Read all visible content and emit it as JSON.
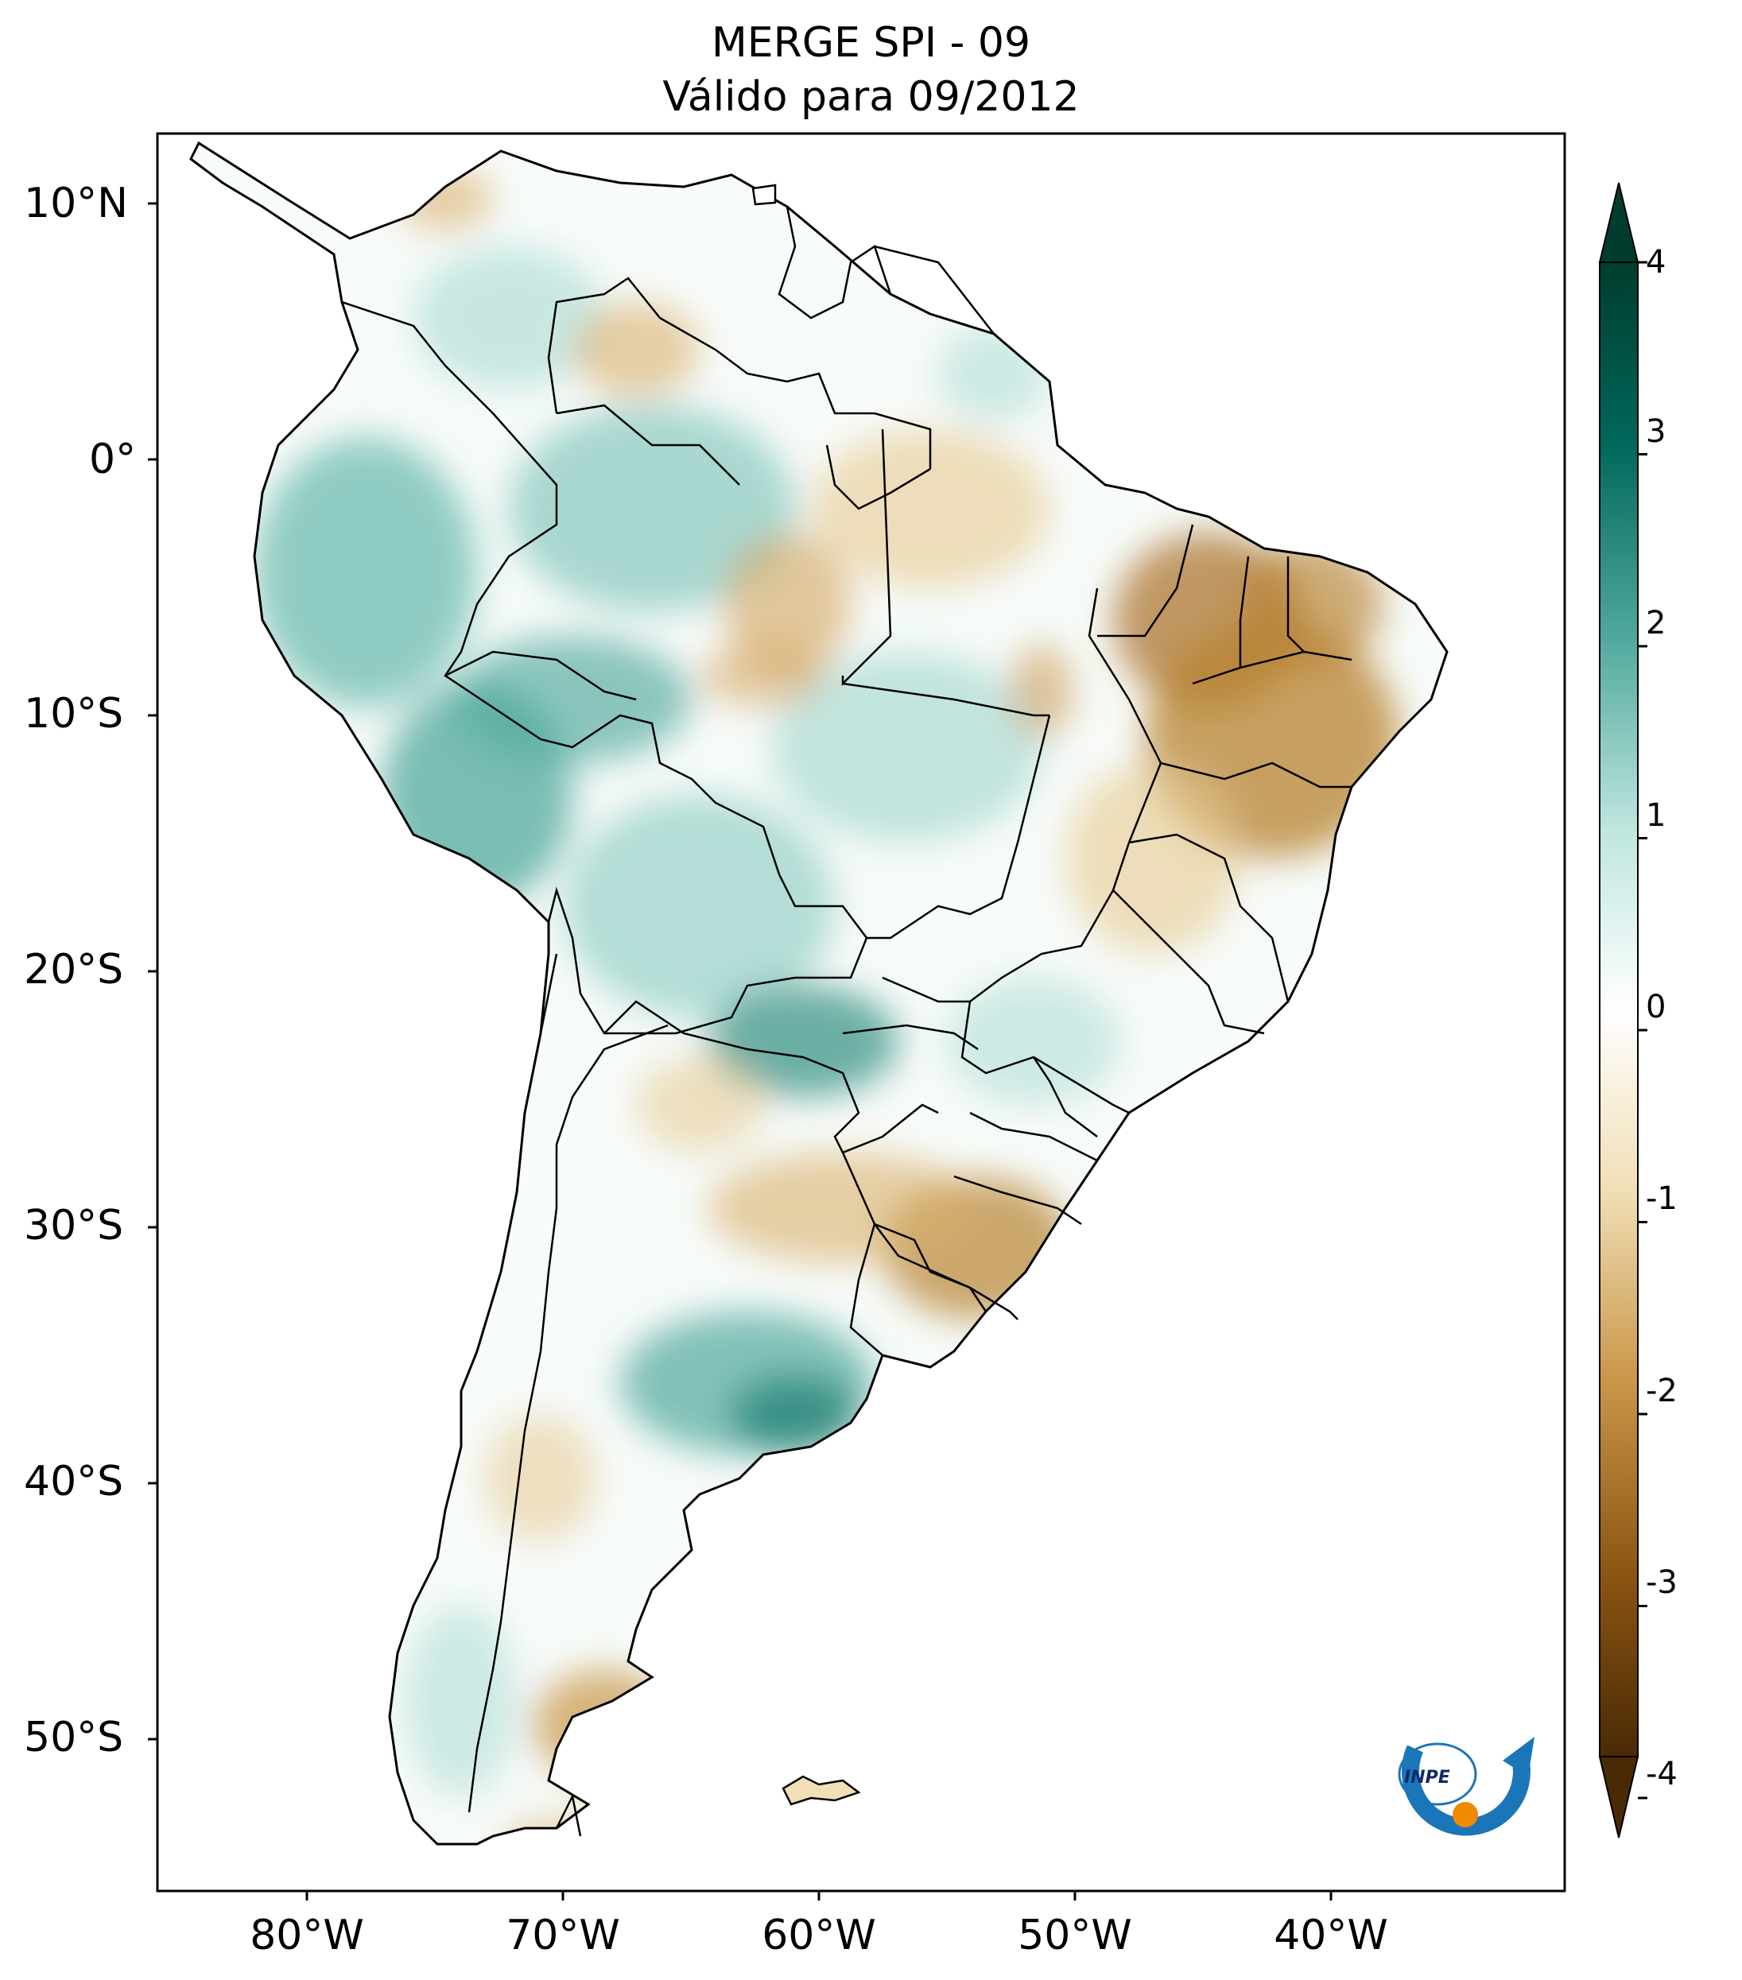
{
  "title": "MERGE   SPI - 09",
  "subtitle": "Válido para 09/2012",
  "lat_ticks": [
    "10°N",
    "0°",
    "10°S",
    "20°S",
    "30°S",
    "40°S",
    "50°S"
  ],
  "lon_ticks": [
    "80°W",
    "70°W",
    "60°W",
    "50°W",
    "40°W"
  ],
  "colorbar": {
    "ticks": [
      "4",
      "3",
      "2",
      "1",
      "0",
      "-1",
      "-2",
      "-3",
      "-4"
    ],
    "colors": {
      "max": "#003d2e",
      "wet_strong": "#00675a",
      "wet_mid": "#4fa89c",
      "wet_light": "#bfe6df",
      "neutral": "#ffffff",
      "dry_light": "#f1dfb6",
      "dry_mid": "#c99547",
      "dry_strong": "#8a5412",
      "min": "#4a2a05"
    }
  },
  "logo": {
    "text": "INPE",
    "icon": "inpe-logo-icon"
  }
}
